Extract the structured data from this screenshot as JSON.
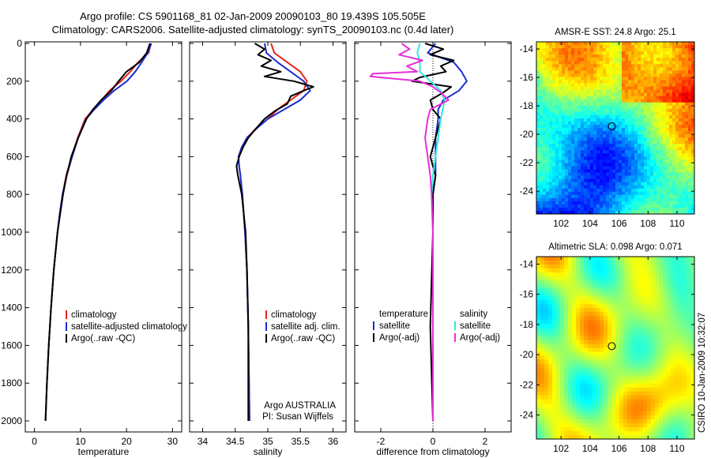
{
  "header": {
    "title_line1": "Argo profile: CS 5901168_81 02-Jan-2009 20090103_80 19.439S 105.505E",
    "title_line2": "Climatology: CARS2006. Satellite-adjusted climatology: synTS_20090103.nc (0.4d later)"
  },
  "side_label": "CSIRO 10-Jan-2009 10:32:07",
  "colors": {
    "climatology": "#e8231a",
    "satellite": "#1a2ccf",
    "argo": "#000000",
    "sal_satellite": "#33e6e6",
    "sal_argo": "#e62ed9"
  },
  "chart_data": [
    {
      "type": "line",
      "name": "temperature",
      "xlabel": "temperature",
      "ylabel": "",
      "xlim": [
        -2,
        32
      ],
      "ylim": [
        2050,
        0
      ],
      "xticks": [
        "0",
        "10",
        "20",
        "30"
      ],
      "xtick_values": [
        0,
        10,
        20,
        30
      ],
      "yticks": [
        "0",
        "200",
        "400",
        "600",
        "800",
        "1000",
        "1200",
        "1400",
        "1600",
        "1800",
        "2000"
      ],
      "ytick_values": [
        0,
        200,
        400,
        600,
        800,
        1000,
        1200,
        1400,
        1600,
        1800,
        2000
      ],
      "legend": [
        "climatology",
        "satellite-adjusted climatology",
        "Argo(..raw -QC)"
      ],
      "series": [
        {
          "name": "climatology",
          "depth": [
            0,
            50,
            100,
            150,
            200,
            250,
            300,
            350,
            400,
            500,
            600,
            700,
            800,
            900,
            1000,
            1200,
            1400,
            1600,
            1800,
            2000
          ],
          "values": [
            25.3,
            24.8,
            22.5,
            20.8,
            18.8,
            16.3,
            14.6,
            12.8,
            11.0,
            9.4,
            8.1,
            6.9,
            6.1,
            5.5,
            5.0,
            4.2,
            3.6,
            3.1,
            2.7,
            2.4
          ]
        },
        {
          "name": "satellite",
          "depth": [
            0,
            50,
            100,
            150,
            200,
            250,
            300,
            350,
            400,
            500,
            600,
            700,
            800,
            900,
            1000,
            1200,
            1400,
            1600,
            1800,
            2000
          ],
          "values": [
            25.4,
            24.6,
            23.3,
            21.9,
            20.1,
            17.3,
            15.0,
            13.0,
            11.2,
            9.5,
            8.2,
            7.0,
            6.1,
            5.5,
            5.0,
            4.2,
            3.6,
            3.1,
            2.7,
            2.4
          ]
        },
        {
          "name": "argo",
          "depth": [
            0,
            50,
            100,
            150,
            200,
            250,
            300,
            350,
            400,
            500,
            600,
            700,
            800,
            900,
            1000,
            1200,
            1400,
            1600,
            1800,
            2000
          ],
          "values": [
            25.1,
            24.4,
            22.8,
            20.0,
            18.3,
            16.7,
            14.5,
            12.7,
            11.3,
            9.5,
            8.0,
            7.0,
            6.2,
            5.6,
            5.0,
            4.2,
            3.6,
            3.1,
            2.7,
            2.4
          ]
        }
      ]
    },
    {
      "type": "line",
      "name": "salinity",
      "xlabel": "salinity",
      "xlim": [
        33.8,
        36.2
      ],
      "ylim": [
        2050,
        0
      ],
      "xticks": [
        "34",
        "34.5",
        "35",
        "35.5",
        "36"
      ],
      "xtick_values": [
        34,
        34.5,
        35,
        35.5,
        36
      ],
      "legend": [
        "climatology",
        "satellite adj. clim.",
        "Argo(..raw -QC)"
      ],
      "annotation": [
        "Argo AUSTRALIA",
        "PI: Susan Wijffels"
      ],
      "series": [
        {
          "name": "climatology",
          "depth": [
            0,
            50,
            100,
            150,
            200,
            250,
            300,
            350,
            400,
            450,
            500,
            550,
            600,
            650,
            700,
            800,
            1000,
            1200,
            1500,
            2000
          ],
          "values": [
            35.05,
            35.1,
            35.3,
            35.5,
            35.6,
            35.55,
            35.35,
            35.15,
            35.0,
            34.82,
            34.68,
            34.6,
            34.55,
            34.56,
            34.58,
            34.61,
            34.65,
            34.68,
            34.7,
            34.72
          ]
        },
        {
          "name": "satellite",
          "depth": [
            0,
            50,
            100,
            150,
            200,
            250,
            300,
            350,
            400,
            450,
            500,
            550,
            600,
            650,
            700,
            800,
            1000,
            1200,
            1500,
            2000
          ],
          "values": [
            34.95,
            34.98,
            35.15,
            35.35,
            35.55,
            35.65,
            35.5,
            35.25,
            35.0,
            34.83,
            34.68,
            34.6,
            34.55,
            34.56,
            34.58,
            34.61,
            34.65,
            34.68,
            34.7,
            34.72
          ]
        },
        {
          "name": "argo",
          "depth": [
            0,
            30,
            60,
            90,
            120,
            150,
            175,
            200,
            230,
            250,
            280,
            320,
            360,
            400,
            450,
            500,
            550,
            600,
            650,
            700,
            800,
            1000,
            1200,
            1500,
            2000
          ],
          "values": [
            34.8,
            34.95,
            34.85,
            35.05,
            34.9,
            35.2,
            34.95,
            35.4,
            35.7,
            35.55,
            35.35,
            35.3,
            35.1,
            34.95,
            34.82,
            34.7,
            34.62,
            34.56,
            34.52,
            34.54,
            34.6,
            34.66,
            34.68,
            34.7,
            34.7
          ]
        }
      ]
    },
    {
      "type": "line",
      "name": "difference",
      "xlabel": "difference from climatology",
      "xlim": [
        -3,
        3
      ],
      "ylim": [
        2050,
        0
      ],
      "xticks": [
        "-2",
        "0",
        "2"
      ],
      "xtick_values": [
        -2,
        0,
        2
      ],
      "legend_temperature": [
        "temperature",
        "satellite",
        "Argo(-adj)"
      ],
      "legend_salinity": [
        "salinity",
        "satellite",
        "Argo(-adj)"
      ],
      "series": [
        {
          "name": "temperature satellite",
          "depth": [
            0,
            50,
            100,
            150,
            200,
            250,
            300,
            350,
            400,
            500,
            600,
            700,
            800,
            1000,
            1500,
            2000
          ],
          "values": [
            0.1,
            -0.2,
            0.8,
            1.1,
            1.3,
            1.0,
            0.4,
            0.2,
            0.2,
            0.1,
            0.1,
            0.1,
            0.0,
            0.0,
            0.0,
            0.0
          ]
        },
        {
          "name": "temperature argo",
          "depth": [
            0,
            30,
            60,
            90,
            120,
            150,
            180,
            200,
            230,
            260,
            300,
            350,
            400,
            500,
            600,
            700,
            800,
            1000,
            1500,
            2000
          ],
          "values": [
            -0.3,
            0.4,
            -0.1,
            0.8,
            0.3,
            0.5,
            -0.5,
            -0.8,
            0.7,
            0.4,
            -0.1,
            0.0,
            0.3,
            0.1,
            -0.1,
            0.1,
            0.0,
            0.0,
            -0.1,
            0.0
          ]
        },
        {
          "name": "salinity satellite",
          "depth": [
            0,
            50,
            100,
            150,
            200,
            250,
            300,
            400,
            500,
            600,
            700,
            800,
            1000,
            1500,
            2000
          ],
          "values": [
            -0.5,
            -0.6,
            -0.5,
            -0.5,
            -0.1,
            0.3,
            0.45,
            0.3,
            0.2,
            0.1,
            0.0,
            -0.05,
            0.0,
            0.0,
            0.0
          ]
        },
        {
          "name": "salinity argo",
          "depth": [
            0,
            30,
            60,
            90,
            120,
            150,
            160,
            175,
            200,
            230,
            260,
            300,
            350,
            400,
            500,
            600,
            700,
            800,
            1000,
            1500,
            2000
          ],
          "values": [
            -1.2,
            -0.9,
            -1.3,
            -0.4,
            -1.0,
            -0.6,
            -2.3,
            -2.4,
            -0.5,
            0.0,
            0.3,
            0.6,
            -0.1,
            -0.2,
            -0.3,
            -0.2,
            -0.1,
            -0.05,
            0.0,
            0.0,
            0.0
          ]
        }
      ]
    },
    {
      "type": "heatmap",
      "name": "sst",
      "title": "AMSR-E SST: 24.8 Argo: 25.1",
      "xlim": [
        100.3,
        111.2
      ],
      "ylim": [
        -25.6,
        -13.5
      ],
      "xticks": [
        "102",
        "104",
        "106",
        "108",
        "110"
      ],
      "xtick_values": [
        102,
        104,
        106,
        108,
        110
      ],
      "yticks": [
        "-14",
        "-16",
        "-18",
        "-20",
        "-22",
        "-24"
      ],
      "ytick_values": [
        -14,
        -16,
        -18,
        -20,
        -22,
        -24
      ],
      "marker": {
        "lon": 105.5,
        "lat": -19.44
      }
    },
    {
      "type": "heatmap",
      "name": "sla",
      "title": "Altimetric SLA: 0.098 Argo: 0.071",
      "xlim": [
        100.3,
        111.2
      ],
      "ylim": [
        -25.6,
        -13.5
      ],
      "xticks": [
        "102",
        "104",
        "106",
        "108",
        "110"
      ],
      "xtick_values": [
        102,
        104,
        106,
        108,
        110
      ],
      "yticks": [
        "-14",
        "-16",
        "-18",
        "-20",
        "-22",
        "-24"
      ],
      "ytick_values": [
        -14,
        -16,
        -18,
        -20,
        -22,
        -24
      ],
      "marker": {
        "lon": 105.5,
        "lat": -19.44
      }
    }
  ]
}
